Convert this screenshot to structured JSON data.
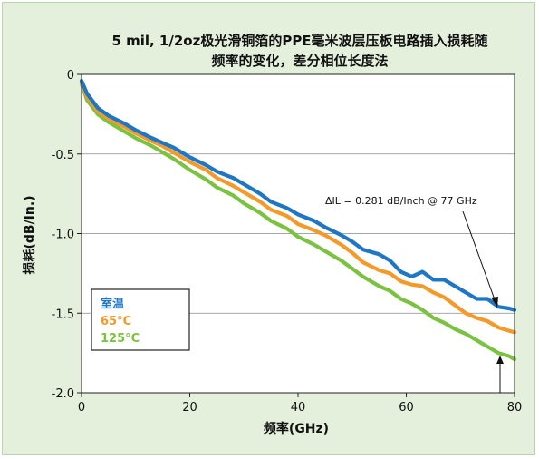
{
  "chart_data": {
    "type": "line",
    "title": "5 mil, 1/2oz极光滑铜箔的PPE毫米波层压板电路插入损耗随",
    "subtitle": "频率的变化，差分相位长度法",
    "xlabel": "频率(GHz)",
    "ylabel": "损耗(dB/In.)",
    "xlim": [
      0,
      80
    ],
    "ylim": [
      -2.0,
      0
    ],
    "xticks": [
      "0",
      "20",
      "40",
      "60",
      "80"
    ],
    "yticks": [
      "0",
      "-0.5",
      "-1.0",
      "-1.5",
      "-2.0"
    ],
    "grid": "horizontal",
    "legend_position": "bottom-left",
    "annotation": "ΔIL = 0.281 dB/Inch @ 77 GHz",
    "series": [
      {
        "name": "室温",
        "color": "#1f77c4",
        "x": [
          0,
          1,
          3,
          5,
          8,
          10,
          13,
          15,
          17,
          20,
          23,
          25,
          28,
          30,
          33,
          35,
          38,
          40,
          43,
          45,
          48,
          50,
          52,
          55,
          57,
          59,
          61,
          63,
          65,
          67,
          69,
          71,
          73,
          75,
          77,
          79,
          80
        ],
        "y": [
          -0.04,
          -0.12,
          -0.21,
          -0.26,
          -0.31,
          -0.35,
          -0.4,
          -0.43,
          -0.46,
          -0.52,
          -0.57,
          -0.61,
          -0.65,
          -0.69,
          -0.75,
          -0.8,
          -0.84,
          -0.88,
          -0.92,
          -0.96,
          -1.01,
          -1.05,
          -1.1,
          -1.13,
          -1.17,
          -1.24,
          -1.27,
          -1.24,
          -1.29,
          -1.29,
          -1.33,
          -1.37,
          -1.41,
          -1.41,
          -1.46,
          -1.47,
          -1.48
        ]
      },
      {
        "name": "65°C",
        "color": "#f39a2a",
        "x": [
          0,
          1,
          3,
          5,
          8,
          10,
          13,
          15,
          17,
          20,
          23,
          25,
          28,
          30,
          33,
          35,
          38,
          40,
          43,
          45,
          48,
          50,
          52,
          55,
          57,
          59,
          61,
          63,
          65,
          67,
          69,
          71,
          73,
          75,
          77,
          79,
          80
        ],
        "y": [
          -0.05,
          -0.14,
          -0.23,
          -0.28,
          -0.33,
          -0.37,
          -0.42,
          -0.45,
          -0.49,
          -0.55,
          -0.6,
          -0.65,
          -0.7,
          -0.74,
          -0.8,
          -0.85,
          -0.89,
          -0.94,
          -0.98,
          -1.01,
          -1.07,
          -1.12,
          -1.18,
          -1.23,
          -1.25,
          -1.3,
          -1.32,
          -1.33,
          -1.37,
          -1.4,
          -1.45,
          -1.5,
          -1.53,
          -1.55,
          -1.59,
          -1.61,
          -1.62
        ]
      },
      {
        "name": "125°C",
        "color": "#7cc242",
        "x": [
          0,
          1,
          3,
          5,
          8,
          10,
          13,
          15,
          17,
          20,
          23,
          25,
          28,
          30,
          33,
          35,
          38,
          40,
          43,
          45,
          48,
          50,
          52,
          55,
          57,
          59,
          61,
          63,
          65,
          67,
          69,
          71,
          73,
          75,
          77,
          79,
          80
        ],
        "y": [
          -0.06,
          -0.16,
          -0.25,
          -0.3,
          -0.36,
          -0.4,
          -0.45,
          -0.49,
          -0.53,
          -0.6,
          -0.66,
          -0.71,
          -0.76,
          -0.81,
          -0.87,
          -0.92,
          -0.97,
          -1.02,
          -1.07,
          -1.11,
          -1.17,
          -1.22,
          -1.27,
          -1.33,
          -1.36,
          -1.41,
          -1.44,
          -1.48,
          -1.53,
          -1.56,
          -1.6,
          -1.63,
          -1.67,
          -1.71,
          -1.75,
          -1.77,
          -1.79
        ]
      }
    ]
  }
}
